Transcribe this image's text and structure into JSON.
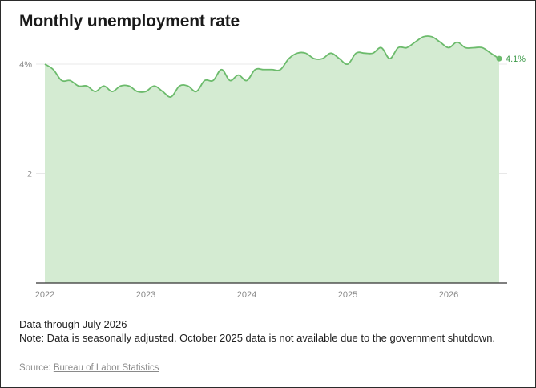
{
  "title": "Monthly unemployment rate",
  "notes": {
    "data_through": "Data through July 2026",
    "note": "Note: Data is seasonally adjusted. October 2025 data is not available due to the government shutdown."
  },
  "source": {
    "prefix": "Source: ",
    "link_text": "Bureau of Labor Statistics"
  },
  "colors": {
    "line": "#6cbb6c",
    "fill": "#d4ebd2",
    "grid": "#e8e8e8",
    "axis": "#333333"
  },
  "chart_data": {
    "type": "area",
    "title": "Monthly unemployment rate",
    "xlabel": "",
    "ylabel": "",
    "ylim": [
      0,
      4.6
    ],
    "yticks": [
      {
        "value": 2,
        "label": "2"
      },
      {
        "value": 4,
        "label": "4%"
      }
    ],
    "xticks": [
      {
        "value": 2022,
        "label": "2022"
      },
      {
        "value": 2023,
        "label": "2023"
      },
      {
        "value": 2024,
        "label": "2024"
      },
      {
        "value": 2025,
        "label": "2025"
      },
      {
        "value": 2026,
        "label": "2026"
      }
    ],
    "grid": true,
    "end_label": "4.1%",
    "series": [
      {
        "start": "2022-01",
        "end": "2026-07",
        "values": [
          4.0,
          3.9,
          3.7,
          3.7,
          3.6,
          3.6,
          3.5,
          3.6,
          3.5,
          3.6,
          3.6,
          3.5,
          3.5,
          3.6,
          3.5,
          3.4,
          3.6,
          3.6,
          3.5,
          3.7,
          3.7,
          3.9,
          3.7,
          3.8,
          3.7,
          3.9,
          3.9,
          3.9,
          3.9,
          4.1,
          4.2,
          4.2,
          4.1,
          4.1,
          4.2,
          4.1,
          4.0,
          4.2,
          4.2,
          4.2,
          4.3,
          4.1,
          4.3,
          4.3,
          4.4,
          4.5,
          4.5,
          4.4,
          4.3,
          4.4,
          4.3,
          4.3,
          4.3,
          4.2,
          4.1
        ]
      }
    ]
  }
}
